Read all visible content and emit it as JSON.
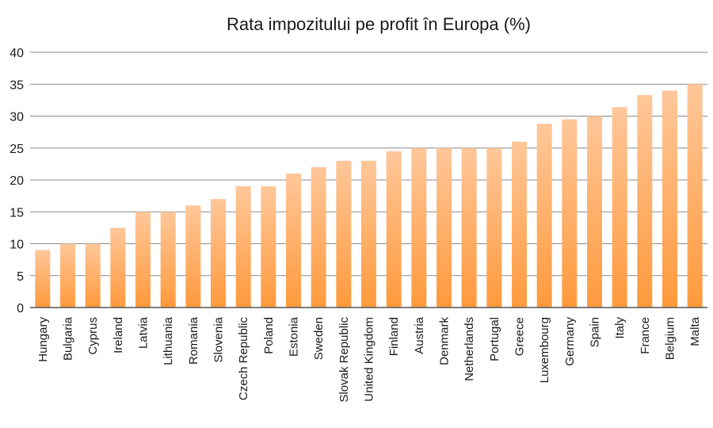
{
  "chart_data": {
    "type": "bar",
    "title": "Rata impozitului pe profit în Europa (%)",
    "xlabel": "",
    "ylabel": "",
    "ylim": [
      0,
      40
    ],
    "yticks": [
      0,
      5,
      10,
      15,
      20,
      25,
      30,
      35,
      40
    ],
    "grid": true,
    "legend": "none",
    "bar_color": "#FF9A3C",
    "bar_color_light": "#FFC79A",
    "categories": [
      "Hungary",
      "Bulgaria",
      "Cyprus",
      "Ireland",
      "Latvia",
      "Lithuania",
      "Romania",
      "Slovenia",
      "Czech Republic",
      "Poland",
      "Estonia",
      "Sweden",
      "Slovak Republic",
      "United Kingdom",
      "Finland",
      "Austria",
      "Denmark",
      "Netherlands",
      "Portugal",
      "Greece",
      "Luxembourg",
      "Germany",
      "Spain",
      "Italy",
      "France",
      "Belgium",
      "Malta"
    ],
    "values": [
      9,
      10,
      10,
      12.5,
      15,
      15,
      16,
      17,
      19,
      19,
      21,
      22,
      23,
      23,
      24.5,
      25,
      25,
      25,
      25,
      26,
      28.8,
      29.5,
      30,
      31.4,
      33.3,
      34,
      35
    ]
  }
}
